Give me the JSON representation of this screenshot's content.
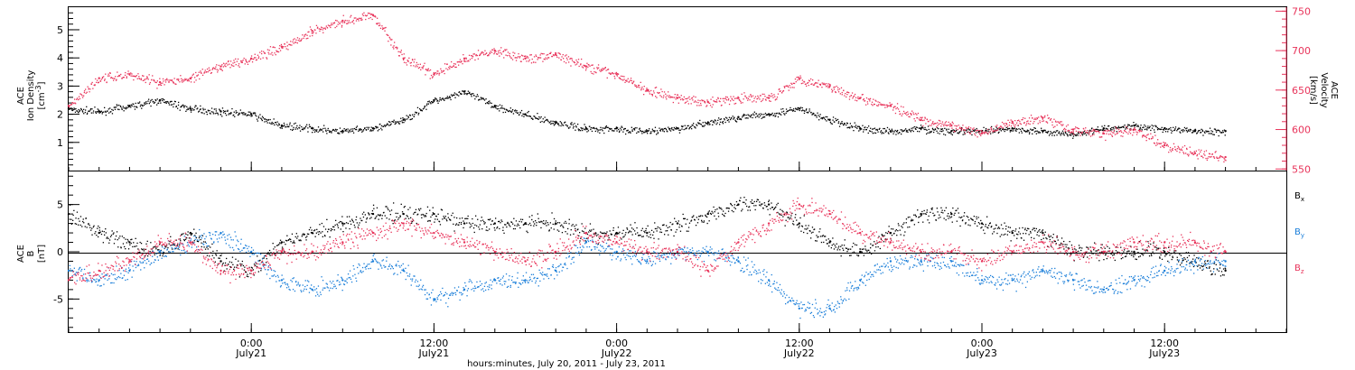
{
  "colors": {
    "black": "#000000",
    "red": "#e8335a",
    "blue": "#1a7ed9"
  },
  "xlabel": "hours:minutes, July 20, 2011 - July 23, 2011",
  "x_ticks": [
    {
      "h": 30,
      "time": "0:00",
      "date": "July21"
    },
    {
      "h": 42,
      "time": "12:00",
      "date": "July21"
    },
    {
      "h": 54,
      "time": "0:00",
      "date": "July22"
    },
    {
      "h": 66,
      "time": "12:00",
      "date": "July22"
    },
    {
      "h": 78,
      "time": "0:00",
      "date": "July23"
    },
    {
      "h": 90,
      "time": "12:00",
      "date": "July23"
    }
  ],
  "chart_data": [
    {
      "type": "scatter",
      "panel": "plasma",
      "x_unit": "hours after 00:00 July 20, 2011",
      "xlim": [
        18,
        98
      ],
      "left_axis": {
        "title_line1": "ACE",
        "title_line2": "Ion Density",
        "unit_label": "[cm",
        "unit_exp": "-3",
        "unit_close": "]",
        "ylim": [
          0,
          5.8
        ],
        "ticks": [
          "1",
          "2",
          "3",
          "4",
          "5"
        ]
      },
      "right_axis": {
        "title_line1": "ACE",
        "title_line2": "Velocity",
        "unit_label": "[km/s]",
        "ylim": [
          548,
          755
        ],
        "ticks": [
          "550",
          "600",
          "650",
          "700",
          "750"
        ]
      },
      "series": [
        {
          "axis": "left",
          "color": "#000000",
          "x": [
            18,
            20,
            22,
            24,
            26,
            28,
            30,
            32,
            34,
            36,
            38,
            40,
            42,
            44,
            46,
            48,
            50,
            52,
            54,
            56,
            58,
            60,
            62,
            64,
            66,
            68,
            70,
            72,
            74,
            76,
            78,
            80,
            82,
            84,
            86,
            88,
            90,
            92,
            94
          ],
          "values": [
            2.2,
            2.1,
            2.3,
            2.5,
            2.2,
            2.1,
            2.0,
            1.6,
            1.5,
            1.4,
            1.5,
            1.8,
            2.5,
            2.8,
            2.3,
            2.0,
            1.7,
            1.5,
            1.5,
            1.4,
            1.5,
            1.7,
            1.9,
            2.0,
            2.2,
            1.8,
            1.5,
            1.4,
            1.5,
            1.4,
            1.4,
            1.5,
            1.4,
            1.3,
            1.5,
            1.6,
            1.5,
            1.4,
            1.4
          ]
        },
        {
          "axis": "right",
          "color": "#e8335a",
          "x": [
            18,
            20,
            22,
            24,
            26,
            28,
            30,
            32,
            34,
            36,
            38,
            40,
            42,
            44,
            46,
            48,
            50,
            52,
            54,
            56,
            58,
            60,
            62,
            64,
            66,
            68,
            70,
            72,
            74,
            76,
            78,
            80,
            82,
            84,
            86,
            88,
            90,
            92,
            94
          ],
          "values": [
            630,
            665,
            670,
            660,
            665,
            680,
            690,
            705,
            725,
            738,
            745,
            690,
            670,
            690,
            700,
            690,
            695,
            680,
            670,
            650,
            640,
            635,
            640,
            640,
            665,
            655,
            640,
            630,
            612,
            605,
            595,
            610,
            615,
            600,
            595,
            600,
            580,
            570,
            565
          ]
        }
      ]
    },
    {
      "type": "scatter",
      "panel": "magnetic field",
      "x_unit": "hours after 00:00 July 20, 2011",
      "xlim": [
        18,
        98
      ],
      "left_axis": {
        "title_line1": "ACE",
        "title_line2": "B",
        "unit_label": "[nT]",
        "ylim": [
          -8.5,
          8.5
        ],
        "ticks": [
          "-5",
          "0",
          "5"
        ]
      },
      "series": [
        {
          "name": "Bx",
          "color": "#000000",
          "x": [
            18,
            20,
            22,
            24,
            26,
            28,
            30,
            32,
            34,
            36,
            38,
            40,
            42,
            44,
            46,
            48,
            50,
            52,
            54,
            56,
            58,
            60,
            62,
            64,
            66,
            68,
            70,
            72,
            74,
            76,
            78,
            80,
            82,
            84,
            86,
            88,
            90,
            92,
            94
          ],
          "values": [
            4,
            2,
            1,
            0,
            2,
            -1,
            -2,
            1,
            2,
            3,
            4,
            4,
            4,
            3,
            3,
            3,
            3,
            2,
            2,
            2,
            3,
            4,
            5,
            5,
            3,
            1,
            0,
            2,
            4,
            4,
            3,
            2,
            2,
            0,
            0,
            0,
            0,
            -1,
            -2
          ]
        },
        {
          "name": "By",
          "color": "#1a7ed9",
          "x": [
            18,
            20,
            22,
            24,
            26,
            28,
            30,
            32,
            34,
            36,
            38,
            40,
            42,
            44,
            46,
            48,
            50,
            52,
            54,
            56,
            58,
            60,
            62,
            64,
            66,
            68,
            70,
            72,
            74,
            76,
            78,
            80,
            82,
            84,
            86,
            88,
            90,
            92,
            94
          ],
          "values": [
            -2,
            -3,
            -2,
            0,
            1,
            2,
            0,
            -3,
            -4,
            -3,
            -1,
            -2,
            -5,
            -4,
            -3,
            -3,
            -2,
            1,
            0,
            -1,
            0,
            0,
            -1,
            -3,
            -6,
            -6,
            -3,
            -1,
            -1,
            -1,
            -3,
            -3,
            -2,
            -3,
            -4,
            -3,
            -2,
            -1,
            -1
          ]
        },
        {
          "name": "Bz",
          "color": "#e8335a",
          "x": [
            18,
            20,
            22,
            24,
            26,
            28,
            30,
            32,
            34,
            36,
            38,
            40,
            42,
            44,
            46,
            48,
            50,
            52,
            54,
            56,
            58,
            60,
            62,
            64,
            66,
            68,
            70,
            72,
            74,
            76,
            78,
            80,
            82,
            84,
            86,
            88,
            90,
            92,
            94
          ],
          "values": [
            -3,
            -2,
            -1,
            1,
            1,
            -2,
            -2,
            0,
            0,
            1,
            2,
            3,
            2,
            1,
            0,
            -1,
            0,
            2,
            1,
            0,
            0,
            -2,
            1,
            3,
            5,
            4,
            2,
            1,
            0,
            0,
            -1,
            0,
            1,
            0,
            0,
            1,
            1,
            1,
            0
          ]
        }
      ],
      "legend": [
        {
          "letter": "B",
          "sub": "x",
          "color": "#000000"
        },
        {
          "letter": "B",
          "sub": "y",
          "color": "#1a7ed9"
        },
        {
          "letter": "B",
          "sub": "z",
          "color": "#e8335a"
        }
      ]
    }
  ]
}
